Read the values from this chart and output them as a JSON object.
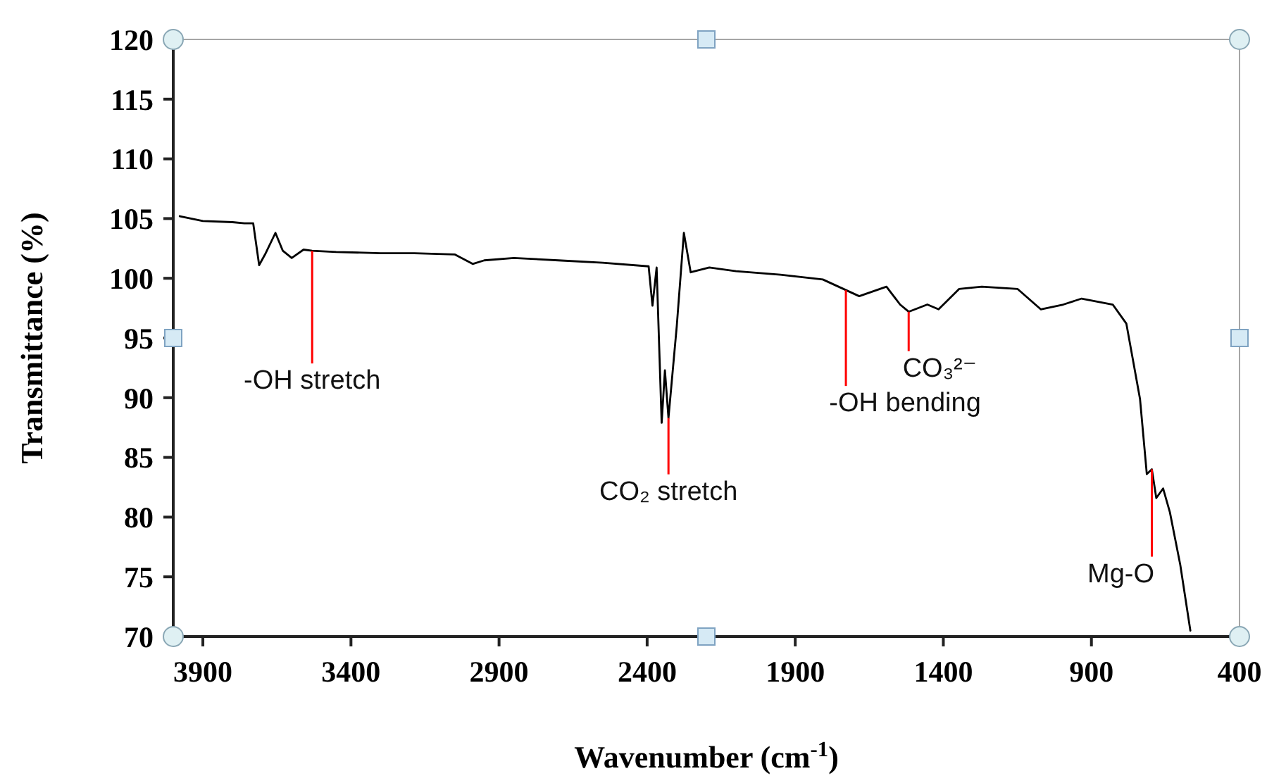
{
  "chart_data": {
    "type": "line",
    "xlabel": "Wavenumber  (cm$^{-1}$)",
    "ylabel": "Transmittance  (%)",
    "xlim": [
      4000,
      400
    ],
    "xticks": [
      3900,
      3400,
      2900,
      2400,
      1900,
      1400,
      900,
      400
    ],
    "ylim": [
      70,
      120
    ],
    "yticks": [
      70,
      75,
      80,
      85,
      90,
      95,
      100,
      105,
      110,
      115,
      120
    ],
    "grid": false,
    "marker": "none",
    "line_style": "solid",
    "series": [
      {
        "color": "#000000",
        "x": [
          3978,
          3900,
          3800,
          3760,
          3730,
          3710,
          3690,
          3655,
          3630,
          3600,
          3560,
          3531,
          3450,
          3300,
          3186,
          3050,
          2989,
          2950,
          2850,
          2700,
          2550,
          2395,
          2382,
          2368,
          2351,
          2340,
          2328,
          2300,
          2276,
          2253,
          2190,
          2100,
          1950,
          1807,
          1684,
          1592,
          1546,
          1517,
          1454,
          1416,
          1347,
          1270,
          1149,
          1071,
          995,
          933,
          828,
          782,
          736,
          713,
          696,
          681,
          658,
          635,
          600,
          566
        ],
        "values": [
          105.2,
          104.8,
          104.7,
          104.6,
          104.6,
          101.1,
          102.0,
          103.8,
          102.3,
          101.7,
          102.4,
          102.3,
          102.2,
          102.1,
          102.1,
          102.0,
          101.2,
          101.5,
          101.7,
          101.5,
          101.3,
          101.0,
          97.7,
          100.9,
          87.9,
          92.3,
          88.3,
          96,
          103.8,
          100.5,
          100.9,
          100.6,
          100.3,
          99.9,
          98.5,
          99.3,
          97.8,
          97.2,
          97.8,
          97.4,
          99.1,
          99.3,
          99.1,
          97.4,
          97.8,
          98.3,
          97.8,
          96.2,
          89.9,
          83.6,
          84.0,
          81.6,
          82.4,
          80.4,
          76,
          70.5
        ]
      }
    ],
    "annotations": [
      {
        "text": "-OH stretch",
        "x": 3531,
        "y": 102.3
      },
      {
        "text": "CO₂ stretch",
        "x": 2328,
        "y": 88.3
      },
      {
        "text": "-OH bending",
        "x": 1729,
        "y": 99.0
      },
      {
        "text": "CO₃²⁻",
        "x": 1517,
        "y": 97.2
      },
      {
        "text": "Mg-O",
        "x": 696,
        "y": 84.0
      }
    ]
  }
}
